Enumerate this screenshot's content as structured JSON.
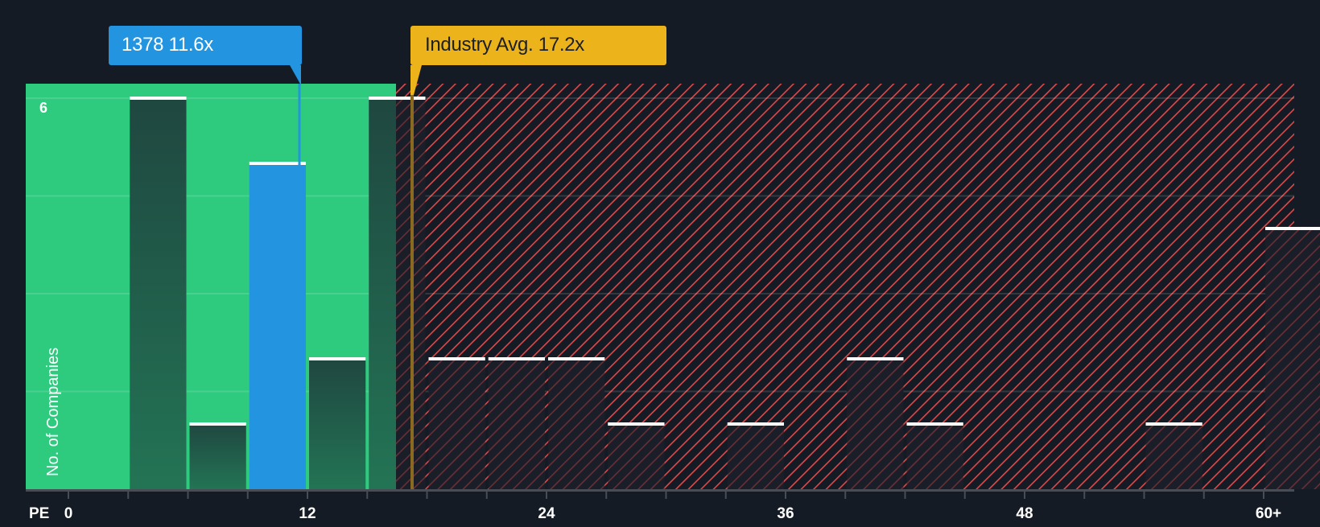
{
  "chart_data": {
    "type": "bar",
    "title": "",
    "xlabel": "PE",
    "ylabel": "No. of Companies",
    "x_ticks": [
      "0",
      "12",
      "24",
      "36",
      "48",
      "60+"
    ],
    "y_ticks": [
      "6"
    ],
    "ylim": [
      0,
      6
    ],
    "xlim": [
      0,
      63
    ],
    "bin_width": 3,
    "grid": true,
    "bins": [
      {
        "start": 3,
        "end": 6,
        "count": 6
      },
      {
        "start": 6,
        "end": 9,
        "count": 1
      },
      {
        "start": 9,
        "end": 12,
        "count": 5,
        "highlight": true
      },
      {
        "start": 12,
        "end": 15,
        "count": 2
      },
      {
        "start": 15,
        "end": 18,
        "count": 6
      },
      {
        "start": 18,
        "end": 21,
        "count": 2
      },
      {
        "start": 21,
        "end": 24,
        "count": 2
      },
      {
        "start": 24,
        "end": 27,
        "count": 2
      },
      {
        "start": 27,
        "end": 30,
        "count": 1
      },
      {
        "start": 33,
        "end": 36,
        "count": 1
      },
      {
        "start": 39,
        "end": 42,
        "count": 2
      },
      {
        "start": 42,
        "end": 45,
        "count": 1
      },
      {
        "start": 54,
        "end": 57,
        "count": 1
      },
      {
        "start": 60,
        "end": 63,
        "count": 4
      }
    ],
    "markers": [
      {
        "name": "1378",
        "value": 11.6,
        "label": "1378 11.6x",
        "color": "#2394df"
      },
      {
        "name": "Industry Avg.",
        "value": 17.2,
        "label": "Industry Avg. 17.2x",
        "color": "#ecb31a"
      }
    ],
    "zones": [
      {
        "name": "below-average",
        "from": 0,
        "to": 16.5,
        "color": "#2ecb7f"
      },
      {
        "name": "above-average",
        "from": 16.5,
        "to": 63,
        "color": "#e04848",
        "pattern": "diagonal-hatch"
      }
    ]
  },
  "labels": {
    "company": "1378 11.6x",
    "industry": "Industry Avg. 17.2x",
    "y_axis_title": "No. of Companies",
    "y_tick_top": "6",
    "x_axis_prefix": "PE"
  },
  "colors": {
    "background": "#151b24",
    "green_zone": "#2ecb7f",
    "hatch_red": "#e04848",
    "company_blue": "#2394df",
    "industry_gold": "#ecb31a",
    "bar_dark": "#1f4a40",
    "bar_top": "#ffffff"
  }
}
